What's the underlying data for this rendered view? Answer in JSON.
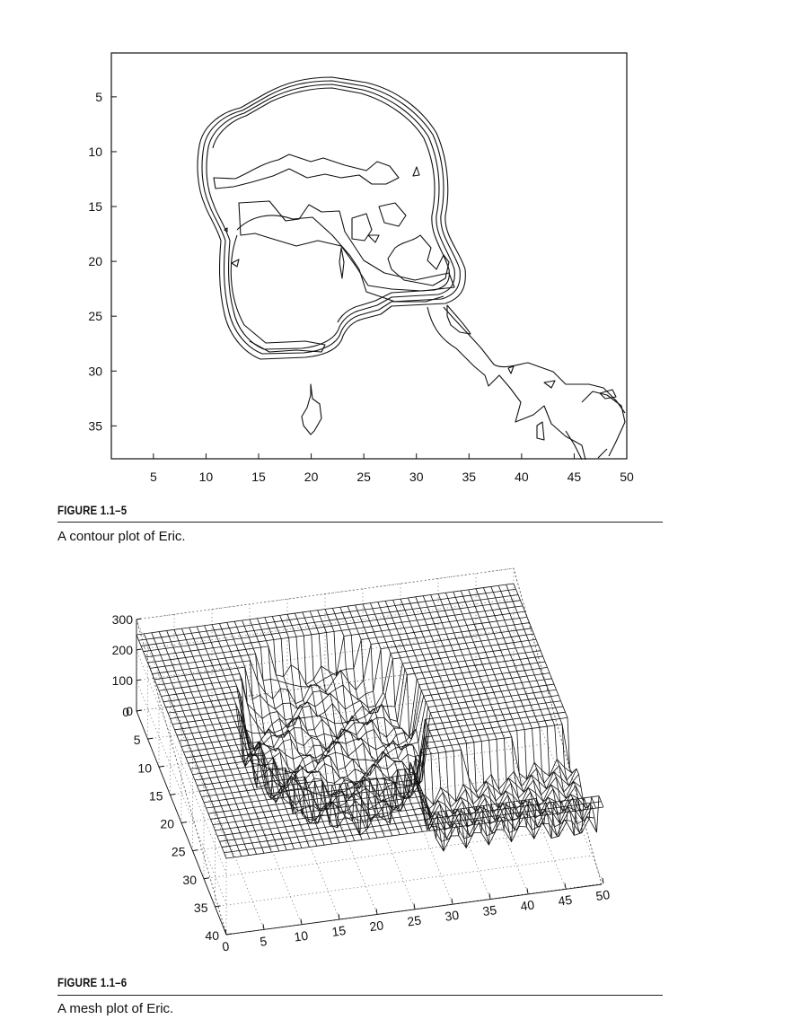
{
  "figures": [
    {
      "label": "FIGURE 1.1–5",
      "caption": "A contour plot of Eric."
    },
    {
      "label": "FIGURE 1.1–6",
      "caption": "A mesh plot of Eric."
    }
  ],
  "chart_data": [
    {
      "type": "contour",
      "x_ticks": [
        5,
        10,
        15,
        20,
        25,
        30,
        35,
        40,
        45,
        50
      ],
      "y_ticks": [
        5,
        10,
        15,
        20,
        25,
        30,
        35
      ],
      "xlim": [
        1,
        50
      ],
      "ylim": [
        38,
        1
      ],
      "y_reversed": true,
      "grid": false
    },
    {
      "type": "mesh",
      "x_ticks": [
        0,
        5,
        10,
        15,
        20,
        25,
        30,
        35,
        40,
        45,
        50
      ],
      "y_ticks": [
        0,
        5,
        10,
        15,
        20,
        25,
        30,
        35,
        40
      ],
      "z_ticks": [
        0,
        100,
        200,
        300
      ],
      "xlim": [
        0,
        50
      ],
      "ylim": [
        0,
        40
      ],
      "zlim": [
        0,
        300
      ],
      "grid": true
    }
  ]
}
